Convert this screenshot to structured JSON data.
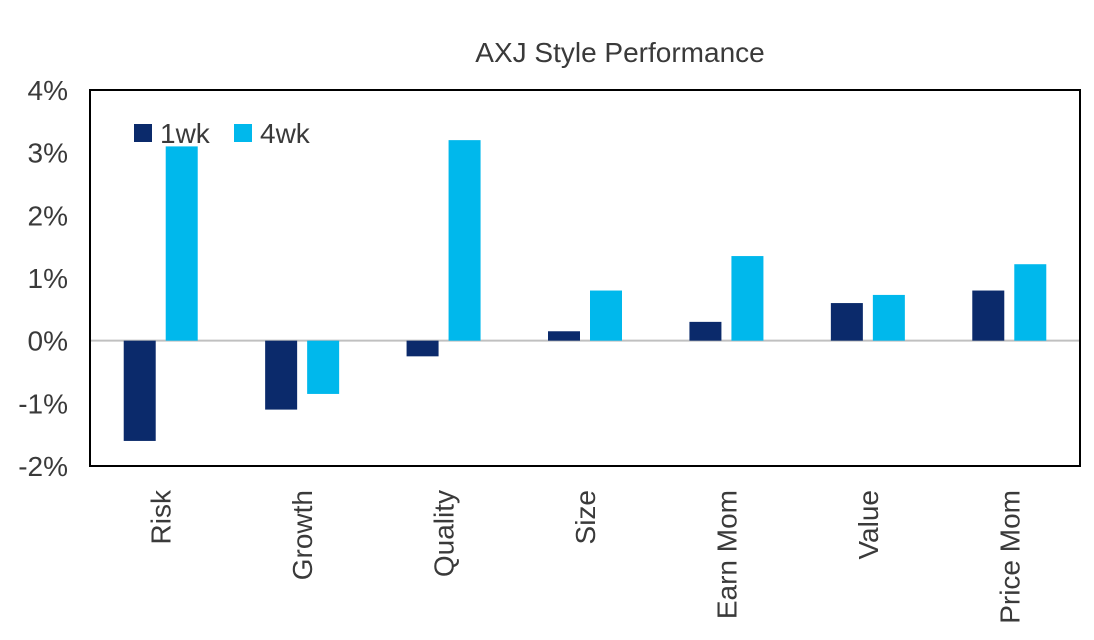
{
  "chart_data": {
    "type": "bar",
    "title": "AXJ Style Performance",
    "categories": [
      "Risk",
      "Growth",
      "Quality",
      "Size",
      "Earn Mom",
      "Value",
      "Price Mom"
    ],
    "series": [
      {
        "name": "1wk",
        "color": "#0b2a6b",
        "values": [
          -1.6,
          -1.1,
          -0.25,
          0.15,
          0.3,
          0.6,
          0.8
        ]
      },
      {
        "name": "4wk",
        "color": "#00b8ec",
        "values": [
          3.1,
          -0.85,
          3.2,
          0.8,
          1.35,
          0.73,
          1.22
        ]
      }
    ],
    "yticks": [
      "4%",
      "3%",
      "2%",
      "1%",
      "0%",
      "-1%",
      "-2%"
    ],
    "ytick_values": [
      4,
      3,
      2,
      1,
      0,
      -1,
      -2
    ],
    "ylim": [
      -2,
      4
    ],
    "xlabel": "",
    "ylabel": "",
    "grid": false,
    "legend_position": "top-left",
    "zero_line_color": "#c0c0c0"
  }
}
